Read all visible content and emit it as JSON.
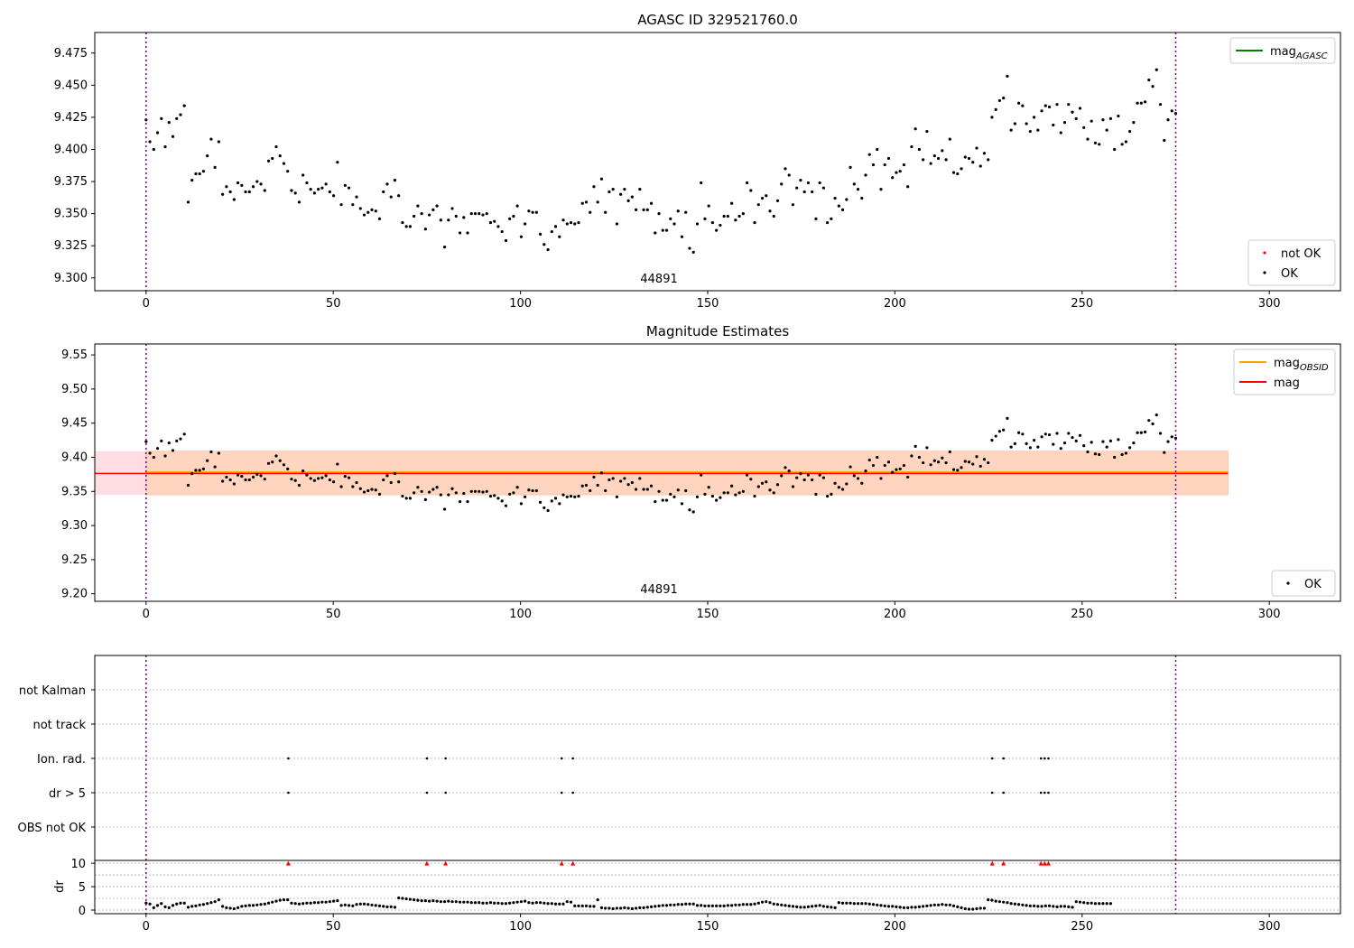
{
  "chart_data": [
    {
      "type": "scatter",
      "title": "AGASC ID 329521760.0",
      "xlim": [
        -13.7,
        319
      ],
      "ylim": [
        9.29,
        9.491
      ],
      "xticks": [
        0,
        50,
        100,
        150,
        200,
        250,
        300
      ],
      "yticks": [
        9.3,
        9.325,
        9.35,
        9.375,
        9.4,
        9.425,
        9.45,
        9.475
      ],
      "obsid_label": "44891",
      "vlines": [
        0,
        275
      ],
      "legend_lines": [
        {
          "label": "mag",
          "sub": "AGASC",
          "color": "#008000"
        }
      ],
      "legend_points": [
        {
          "label": "not OK",
          "color": "#ff0000"
        },
        {
          "label": "OK",
          "color": "#000000"
        }
      ]
    },
    {
      "type": "scatter",
      "title": "Magnitude Estimates",
      "xlim": [
        -13.7,
        319
      ],
      "ylim": [
        9.189,
        9.566
      ],
      "xticks": [
        0,
        50,
        100,
        150,
        200,
        250,
        300
      ],
      "yticks": [
        9.2,
        9.25,
        9.3,
        9.35,
        9.4,
        9.45,
        9.5,
        9.55
      ],
      "obsid_label": "44891",
      "mean": 9.377,
      "band": [
        9.345,
        9.409
      ],
      "band_x": [
        0,
        289
      ],
      "legend_lines": [
        {
          "label": "mag",
          "sub": "OBSID",
          "color": "#ffa500"
        },
        {
          "label": "mag",
          "sub": "",
          "color": "#ff0000"
        }
      ],
      "legend_points": [
        {
          "label": "OK",
          "color": "#000000"
        }
      ]
    },
    {
      "type": "scatter",
      "title": "",
      "flag_categories": [
        "not Kalman",
        "not track",
        "Ion. rad.",
        "dr > 5",
        "OBS not OK"
      ],
      "flag_x": {
        "Ion. rad.": [
          38,
          75,
          80,
          111,
          114,
          226,
          229,
          239,
          240,
          241
        ],
        "dr > 5": [
          38,
          75,
          80,
          111,
          114,
          226,
          229,
          239,
          240,
          241
        ]
      },
      "dr_label": "dr",
      "dr_yticks": [
        0,
        5,
        10
      ],
      "dr_ylim": [
        -0.77,
        10.6
      ],
      "dr_clip_x": [
        38,
        75,
        80,
        111,
        114,
        226,
        229,
        239,
        240,
        241
      ]
    }
  ],
  "mag": [
    9.423,
    9.406,
    9.4,
    9.413,
    9.424,
    9.402,
    9.421,
    9.41,
    9.424,
    9.427,
    9.434,
    9.359,
    9.376,
    9.381,
    9.381,
    9.383,
    9.395,
    9.408,
    9.386,
    9.406,
    9.365,
    9.371,
    9.367,
    9.361,
    9.374,
    9.372,
    9.367,
    9.367,
    9.371,
    9.375,
    9.373,
    9.368,
    9.391,
    9.393,
    9.402,
    9.395,
    9.389,
    9.383,
    9.368,
    9.366,
    9.359,
    9.38,
    9.374,
    9.369,
    9.366,
    9.369,
    9.37,
    9.373,
    9.367,
    9.364,
    9.39,
    9.357,
    9.372,
    9.37,
    9.357,
    9.363,
    9.354,
    9.349,
    9.351,
    9.353,
    9.352,
    9.346,
    9.367,
    9.373,
    9.363,
    9.376,
    9.364,
    9.343,
    9.34,
    9.34,
    9.348,
    9.356,
    9.35,
    9.338,
    9.349,
    9.353,
    9.356,
    9.345,
    9.324,
    9.345,
    9.354,
    9.348,
    9.335,
    9.347,
    9.335,
    9.35,
    9.35,
    9.35,
    9.349,
    9.35,
    9.343,
    9.344,
    9.34,
    9.336,
    9.329,
    9.346,
    9.348,
    9.356,
    9.332,
    9.342,
    9.352,
    9.351,
    9.351,
    9.334,
    9.326,
    9.322,
    9.336,
    9.34,
    9.332,
    9.345,
    9.342,
    9.343,
    9.342,
    9.343,
    9.358,
    9.359,
    9.351,
    9.371,
    9.359,
    9.377,
    9.351,
    9.367,
    9.369,
    9.342,
    9.365,
    9.369,
    9.36,
    9.363,
    9.353,
    9.369,
    9.353,
    9.353,
    9.358,
    9.335,
    9.35,
    9.337,
    9.337,
    9.346,
    9.342,
    9.352,
    9.332,
    9.351,
    9.323,
    9.32,
    9.342,
    9.374,
    9.346,
    9.356,
    9.343,
    9.337,
    9.341,
    9.348,
    9.348,
    9.358,
    9.345,
    9.348,
    9.35,
    9.374,
    9.368,
    9.343,
    9.357,
    9.362,
    9.364,
    9.352,
    9.348,
    9.36,
    9.373,
    9.385,
    9.38,
    9.357,
    9.37,
    9.376,
    9.367,
    9.374,
    9.367,
    9.346,
    9.374,
    9.37,
    9.343,
    9.346,
    9.362,
    9.356,
    9.353,
    9.361,
    9.386,
    9.373,
    9.369,
    9.362,
    9.38,
    9.396,
    9.388,
    9.4,
    9.369,
    9.388,
    9.393,
    9.378,
    9.382,
    9.383,
    9.388,
    9.371,
    9.402,
    9.416,
    9.4,
    9.392,
    9.414,
    9.389,
    9.395,
    9.393,
    9.399,
    9.392,
    9.408,
    9.382,
    9.381,
    9.385,
    9.394,
    9.393,
    9.39,
    9.401,
    9.387,
    9.397,
    9.392,
    9.425,
    9.431,
    9.438,
    9.44,
    9.457,
    9.415,
    9.42,
    9.436,
    9.434,
    9.42,
    9.414,
    9.425,
    9.415,
    9.43,
    9.434,
    9.433,
    9.419,
    9.435,
    9.413,
    9.421,
    9.435,
    9.429,
    9.424,
    9.432,
    9.417,
    9.408,
    9.422,
    9.405,
    9.404,
    9.423,
    9.415,
    9.424,
    9.4,
    9.426,
    9.404,
    9.406,
    9.414,
    9.421,
    9.436,
    9.436,
    9.437,
    9.454,
    9.449,
    9.462,
    9.435,
    9.407,
    9.423,
    9.43,
    9.428
  ],
  "dr": [
    1.5,
    1.3,
    0.5,
    1.0,
    1.4,
    0.7,
    0.5,
    1.0,
    1.3,
    1.5,
    1.5,
    0.6,
    0.8,
    0.9,
    1.1,
    1.2,
    1.4,
    1.6,
    1.8,
    2.2,
    0.8,
    0.5,
    0.4,
    0.3,
    0.5,
    0.8,
    0.9,
    1.0,
    1.0,
    1.1,
    1.2,
    1.3,
    1.5,
    1.7,
    1.9,
    2.1,
    2.2,
    2.2,
    1.5,
    1.4,
    1.3,
    1.4,
    1.5,
    1.5,
    1.6,
    1.6,
    1.7,
    1.7,
    1.8,
    1.9,
    2.0,
    1.0,
    1.1,
    1.0,
    0.9,
    1.2,
    1.3,
    1.3,
    1.2,
    1.1,
    1.0,
    0.9,
    0.8,
    0.7,
    0.7,
    0.6,
    2.6,
    2.5,
    2.4,
    2.3,
    2.2,
    2.1,
    2.0,
    2.0,
    1.9,
    2.0,
    1.9,
    1.8,
    1.8,
    1.9,
    1.8,
    1.8,
    1.7,
    1.7,
    1.7,
    1.6,
    1.6,
    1.6,
    1.5,
    1.5,
    1.6,
    1.5,
    1.5,
    1.4,
    1.4,
    1.5,
    1.6,
    1.7,
    1.8,
    1.9,
    1.6,
    1.5,
    1.6,
    1.6,
    1.5,
    1.4,
    1.4,
    1.3,
    1.3,
    1.3,
    1.8,
    1.7,
    0.9,
    0.9,
    0.9,
    0.9,
    0.8,
    0.8,
    2.2,
    0.5,
    0.4,
    0.4,
    0.3,
    0.4,
    0.4,
    0.5,
    0.4,
    0.3,
    0.4,
    0.5,
    0.5,
    0.6,
    0.7,
    0.8,
    0.9,
    1.0,
    1.0,
    1.1,
    1.1,
    1.2,
    1.2,
    1.3,
    1.3,
    1.3,
    1.0,
    1.0,
    0.9,
    0.9,
    0.9,
    0.9,
    0.9,
    0.9,
    1.0,
    1.0,
    1.1,
    1.1,
    1.2,
    1.2,
    1.2,
    1.3,
    1.5,
    1.7,
    1.8,
    1.6,
    1.3,
    1.2,
    1.1,
    1.0,
    0.9,
    0.8,
    0.7,
    0.6,
    0.6,
    0.7,
    0.8,
    0.9,
    1.0,
    0.8,
    0.7,
    0.6,
    0.5,
    1.6,
    1.5,
    1.5,
    1.5,
    1.4,
    1.4,
    1.4,
    1.4,
    1.3,
    1.2,
    1.1,
    1.0,
    0.9,
    0.8,
    0.8,
    0.7,
    0.6,
    0.5,
    0.5,
    0.6,
    0.6,
    0.7,
    0.8,
    0.9,
    1.0,
    1.1,
    1.1,
    1.2,
    1.1,
    1.1,
    0.9,
    0.7,
    0.5,
    0.3,
    0.2,
    0.2,
    0.3,
    0.4,
    0.4,
    2.2,
    2.1,
    1.9,
    1.8,
    1.7,
    1.6,
    1.4,
    1.3,
    1.2,
    1.1,
    1.0,
    0.9,
    0.9,
    0.8,
    0.8,
    0.9,
    0.9,
    0.8,
    0.7,
    0.8,
    0.8,
    0.7,
    0.6,
    1.8,
    1.7,
    1.6,
    1.5,
    1.5,
    1.4,
    1.4,
    1.4,
    1.4,
    1.4
  ]
}
